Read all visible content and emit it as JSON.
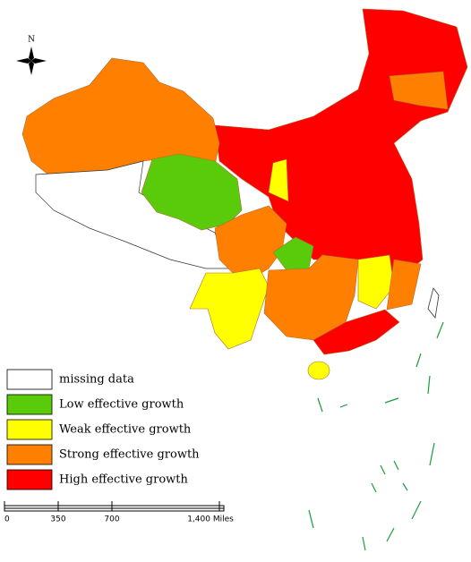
{
  "north_label": "N",
  "legend": [
    {
      "label": "missing data",
      "color": "#ffffff"
    },
    {
      "label": "Low effective growth",
      "color": "#5acb0a"
    },
    {
      "label": "Weak effective growth",
      "color": "#ffff00"
    },
    {
      "label": "Strong effective growth",
      "color": "#ff8000"
    },
    {
      "label": "High effective growth",
      "color": "#ff0000"
    }
  ],
  "scale_bar": [
    "0",
    "350",
    "700",
    "1,400 Miles"
  ]
}
